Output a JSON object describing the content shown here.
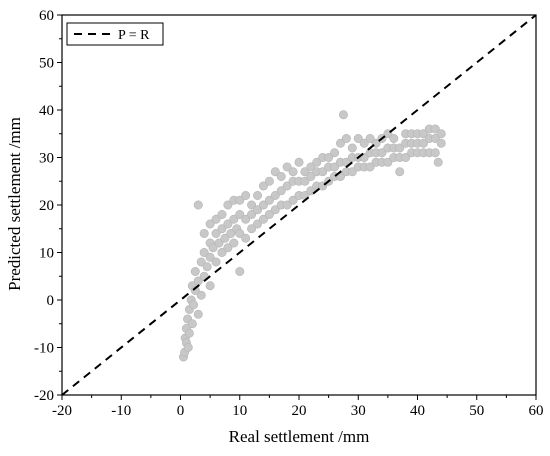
{
  "chart_data": {
    "type": "scatter",
    "title": "",
    "xlabel": "Real settlement /mm",
    "ylabel": "Predicted settlement /mm",
    "xlim": [
      -20,
      60
    ],
    "ylim": [
      -20,
      60
    ],
    "xticks": [
      -20,
      -10,
      0,
      10,
      20,
      30,
      40,
      50,
      60
    ],
    "yticks": [
      -20,
      -10,
      0,
      10,
      20,
      30,
      40,
      50,
      60
    ],
    "grid": false,
    "legend_position": "top-left",
    "colors": {
      "points": "#c8c8c8",
      "reference_line": "#000000",
      "axis": "#000000"
    },
    "series": [
      {
        "points": [
          [
            0.5,
            -12
          ],
          [
            0.7,
            -11
          ],
          [
            0.8,
            -8
          ],
          [
            1,
            -9
          ],
          [
            1,
            -6
          ],
          [
            1.2,
            -4
          ],
          [
            1.3,
            -10
          ],
          [
            1.5,
            -2
          ],
          [
            1.5,
            -7
          ],
          [
            1.8,
            0
          ],
          [
            2,
            -5
          ],
          [
            2,
            3
          ],
          [
            2.2,
            -1
          ],
          [
            2.5,
            2
          ],
          [
            2.5,
            6
          ],
          [
            3,
            4
          ],
          [
            3,
            20
          ],
          [
            3,
            -3
          ],
          [
            3.5,
            8
          ],
          [
            3.5,
            1
          ],
          [
            4,
            10
          ],
          [
            4,
            5
          ],
          [
            4,
            14
          ],
          [
            4.5,
            7
          ],
          [
            5,
            12
          ],
          [
            5,
            9
          ],
          [
            5,
            3
          ],
          [
            5,
            16
          ],
          [
            5.5,
            11
          ],
          [
            6,
            14
          ],
          [
            6,
            8
          ],
          [
            6,
            17
          ],
          [
            6.5,
            12
          ],
          [
            7,
            15
          ],
          [
            7,
            10
          ],
          [
            7,
            18
          ],
          [
            7.5,
            13
          ],
          [
            8,
            16
          ],
          [
            8,
            11
          ],
          [
            8,
            20
          ],
          [
            8.5,
            14
          ],
          [
            9,
            17
          ],
          [
            9,
            12
          ],
          [
            9,
            21
          ],
          [
            9.5,
            15
          ],
          [
            10,
            6
          ],
          [
            10,
            18
          ],
          [
            10,
            14
          ],
          [
            10,
            21
          ],
          [
            11,
            17
          ],
          [
            11,
            13
          ],
          [
            11,
            22
          ],
          [
            12,
            18
          ],
          [
            12,
            15
          ],
          [
            12,
            20
          ],
          [
            13,
            19
          ],
          [
            13,
            16
          ],
          [
            13,
            22
          ],
          [
            14,
            20
          ],
          [
            14,
            17
          ],
          [
            14,
            24
          ],
          [
            15,
            21
          ],
          [
            15,
            18
          ],
          [
            15,
            25
          ],
          [
            16,
            22
          ],
          [
            16,
            19
          ],
          [
            16,
            27
          ],
          [
            17,
            23
          ],
          [
            17,
            20
          ],
          [
            17,
            26
          ],
          [
            18,
            24
          ],
          [
            18,
            20
          ],
          [
            18,
            28
          ],
          [
            19,
            25
          ],
          [
            19,
            21
          ],
          [
            19,
            27
          ],
          [
            20,
            25
          ],
          [
            20,
            22
          ],
          [
            20,
            29
          ],
          [
            21,
            25
          ],
          [
            21,
            22
          ],
          [
            21,
            27
          ],
          [
            22,
            26
          ],
          [
            22,
            23
          ],
          [
            22,
            28
          ],
          [
            23,
            27
          ],
          [
            23,
            24
          ],
          [
            23,
            29
          ],
          [
            24,
            27
          ],
          [
            24,
            24
          ],
          [
            24,
            30
          ],
          [
            25,
            28
          ],
          [
            25,
            25
          ],
          [
            25,
            30
          ],
          [
            26,
            28
          ],
          [
            26,
            26
          ],
          [
            26,
            31
          ],
          [
            27,
            29
          ],
          [
            27,
            26
          ],
          [
            27,
            33
          ],
          [
            27.5,
            39
          ],
          [
            28,
            29
          ],
          [
            28,
            27
          ],
          [
            28,
            34
          ],
          [
            29,
            30
          ],
          [
            29,
            27
          ],
          [
            29,
            32
          ],
          [
            30,
            30
          ],
          [
            30,
            28
          ],
          [
            30,
            34
          ],
          [
            31,
            30
          ],
          [
            31,
            28
          ],
          [
            31,
            33
          ],
          [
            32,
            31
          ],
          [
            32,
            28
          ],
          [
            32,
            34
          ],
          [
            33,
            31
          ],
          [
            33,
            29
          ],
          [
            33,
            33
          ],
          [
            34,
            31
          ],
          [
            34,
            29
          ],
          [
            34,
            34
          ],
          [
            35,
            32
          ],
          [
            35,
            29
          ],
          [
            35,
            35
          ],
          [
            36,
            32
          ],
          [
            36,
            30
          ],
          [
            36,
            34
          ],
          [
            37,
            32
          ],
          [
            37,
            30
          ],
          [
            37,
            27
          ],
          [
            38,
            33
          ],
          [
            38,
            30
          ],
          [
            38,
            35
          ],
          [
            39,
            33
          ],
          [
            39,
            31
          ],
          [
            39,
            35
          ],
          [
            40,
            33
          ],
          [
            40,
            31
          ],
          [
            40,
            35
          ],
          [
            41,
            33
          ],
          [
            41,
            31
          ],
          [
            41,
            35
          ],
          [
            42,
            34
          ],
          [
            42,
            31
          ],
          [
            42,
            36
          ],
          [
            43,
            34
          ],
          [
            43,
            31
          ],
          [
            43,
            36
          ],
          [
            43.5,
            29
          ],
          [
            44,
            33
          ],
          [
            44,
            35
          ]
        ]
      }
    ],
    "reference_line": {
      "name": "P = R",
      "style": "dashed",
      "x": [
        -20,
        60
      ],
      "y": [
        -20,
        60
      ]
    }
  }
}
